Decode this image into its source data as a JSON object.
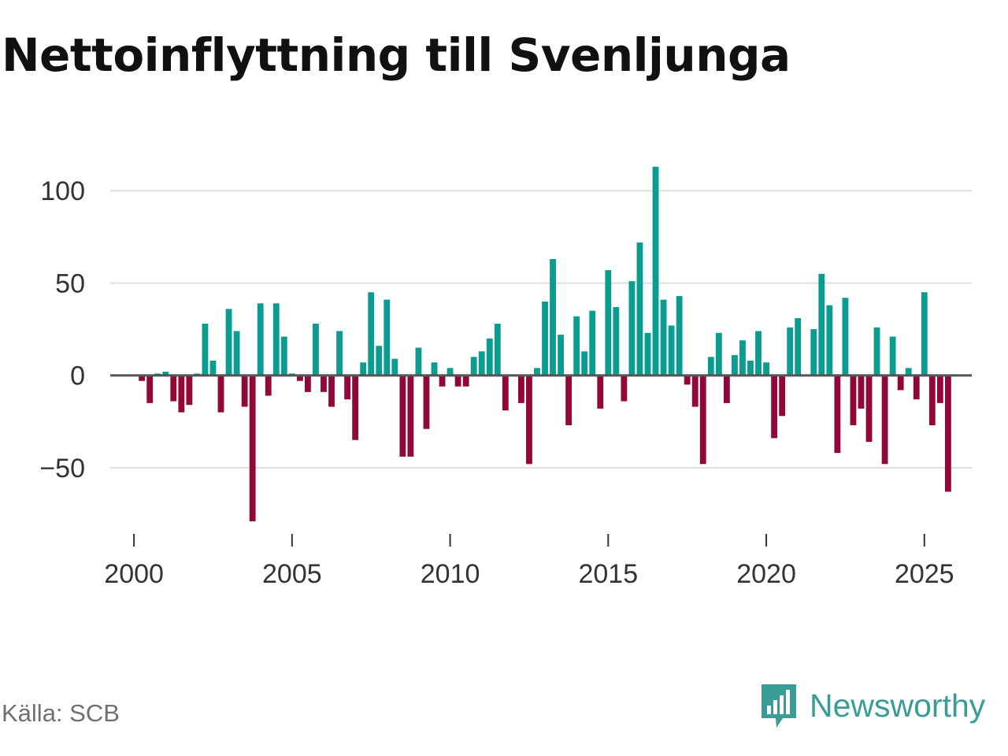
{
  "title": "Nettoinflyttning till Svenljunga",
  "source": "Källa: SCB",
  "brand": "Newsworthy",
  "colors": {
    "positive": "#0a9b91",
    "negative": "#910838",
    "grid": "#dddddd",
    "zero": "#555555",
    "brand": "#3a9c96"
  },
  "chart_data": {
    "type": "bar",
    "title": "Nettoinflyttning till Svenljunga",
    "xlabel": "",
    "ylabel": "",
    "frequency": "quarterly",
    "x_start": 2000.0,
    "x_step": 0.25,
    "xlim": [
      1999.25,
      2026.5
    ],
    "ylim": [
      -85,
      118
    ],
    "yticks": [
      -50,
      0,
      50,
      100
    ],
    "ytick_labels": [
      "−50",
      "0",
      "50",
      "100"
    ],
    "xticks": [
      2000,
      2005,
      2010,
      2015,
      2020,
      2025
    ],
    "xtick_labels": [
      "2000",
      "2005",
      "2010",
      "2015",
      "2020",
      "2025"
    ],
    "values": [
      0,
      -3,
      -15,
      1,
      2,
      -14,
      -20,
      -16,
      1,
      28,
      8,
      -20,
      36,
      24,
      -17,
      -79,
      39,
      -11,
      39,
      21,
      1,
      -3,
      -9,
      28,
      -9,
      -17,
      24,
      -13,
      -35,
      7,
      45,
      16,
      41,
      9,
      -44,
      -44,
      15,
      -29,
      7,
      -6,
      4,
      -6,
      -6,
      10,
      13,
      20,
      28,
      -19,
      0,
      -15,
      -48,
      4,
      40,
      63,
      22,
      -27,
      32,
      13,
      35,
      -18,
      57,
      37,
      -14,
      51,
      72,
      23,
      113,
      41,
      27,
      43,
      -5,
      -17,
      -48,
      10,
      23,
      -15,
      11,
      19,
      8,
      24,
      7,
      -34,
      -22,
      26,
      31,
      0,
      25,
      55,
      38,
      -42,
      42,
      -27,
      -18,
      -36,
      26,
      -48,
      21,
      -8,
      4,
      -13,
      45,
      -27,
      -15,
      -63
    ]
  }
}
